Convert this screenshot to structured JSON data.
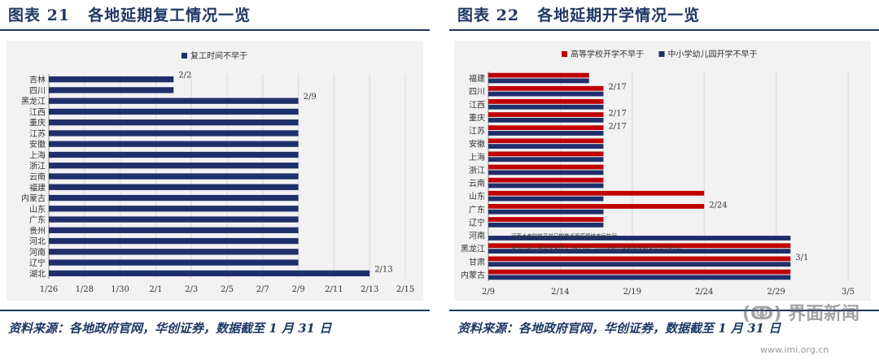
{
  "figures": [
    {
      "title_num": "图表 21",
      "title_text": "各地延期复工情况一览",
      "source": "资料来源：各地政府官网，华创证券，数据截至 1 月 31 日"
    },
    {
      "title_num": "图表 22",
      "title_text": "各地延期开学情况一览",
      "source": "资料来源：各地政府官网，华创证券，数据截至 1 月 31 日"
    }
  ],
  "watermark": {
    "text": "(ↂ) 界面新闻",
    "url": "www.imi.org.cn"
  },
  "colors": {
    "navy": "#1f3864",
    "bar_navy": "#1f2f6b",
    "bar_red": "#c00000",
    "bg": "#f2f2f2"
  },
  "chart_data": [
    {
      "type": "bar",
      "orientation": "horizontal",
      "categories": [
        "吉林",
        "四川",
        "黑龙江",
        "江西",
        "重庆",
        "江苏",
        "安徽",
        "上海",
        "浙江",
        "云南",
        "福建",
        "内蒙古",
        "山东",
        "广东",
        "贵州",
        "河北",
        "河南",
        "辽宁",
        "湖北"
      ],
      "series": [
        {
          "name": "复工时间不早于",
          "color": "#1f2f6b",
          "values": [
            "2/2",
            "2/2",
            "2/9",
            "2/9",
            "2/9",
            "2/9",
            "2/9",
            "2/9",
            "2/9",
            "2/9",
            "2/9",
            "2/9",
            "2/9",
            "2/9",
            "2/9",
            "2/9",
            "2/9",
            "2/9",
            "2/13"
          ]
        }
      ],
      "data_labels": [
        {
          "category": "吉林",
          "text": "2/2"
        },
        {
          "category": "黑龙江",
          "text": "2/9"
        },
        {
          "category": "湖北",
          "text": "2/13"
        }
      ],
      "x_ticks": [
        "1/26",
        "1/28",
        "1/30",
        "2/1",
        "2/3",
        "2/5",
        "2/7",
        "2/9",
        "2/11",
        "2/13",
        "2/15"
      ],
      "xlim": [
        "1/26",
        "2/15"
      ],
      "grid": true,
      "legend": "top-center"
    },
    {
      "type": "bar",
      "orientation": "horizontal",
      "categories": [
        "福建",
        "四川",
        "江西",
        "重庆",
        "江苏",
        "安徽",
        "上海",
        "浙江",
        "云南",
        "山东",
        "广东",
        "辽宁",
        "河南",
        "黑龙江",
        "甘肃",
        "内蒙古"
      ],
      "series": [
        {
          "name": "高等学校开学不早于",
          "color": "#c00000",
          "values": [
            "2/16",
            "2/17",
            "2/17",
            "2/17",
            "2/17",
            "2/17",
            "2/17",
            "2/17",
            "2/17",
            "2/24",
            "2/24",
            "2/17",
            null,
            "3/1",
            "3/1",
            "3/1"
          ]
        },
        {
          "name": "中小学幼儿园开学不早于",
          "color": "#1f2f6b",
          "values": [
            "2/16",
            "2/17",
            "2/17",
            "2/17",
            "2/17",
            "2/17",
            "2/17",
            "2/17",
            "2/17",
            "2/17",
            "2/17",
            "2/17",
            "3/1",
            "3/1",
            "3/1",
            "3/1"
          ]
        }
      ],
      "data_labels": [
        {
          "category": "四川",
          "text": "2/17"
        },
        {
          "category": "重庆",
          "text": "2/17"
        },
        {
          "category": "江苏",
          "text": "2/17"
        },
        {
          "category": "广东",
          "text": "2/24"
        },
        {
          "category": "甘肃",
          "text": "3/1"
        }
      ],
      "annotations": [
        {
          "category": "河南",
          "text": "河南大专院校开学日期推迟至疫情结束后执行"
        },
        {
          "category": "黑龙江",
          "text": "黑龙江幼儿园开学不早于2月17日，中小学和中等职业学校不早于3月1日"
        }
      ],
      "x_ticks": [
        "2/9",
        "2/14",
        "2/19",
        "2/24",
        "2/29",
        "3/5"
      ],
      "xlim": [
        "2/9",
        "3/5"
      ],
      "grid": true,
      "legend": "top-center"
    }
  ]
}
